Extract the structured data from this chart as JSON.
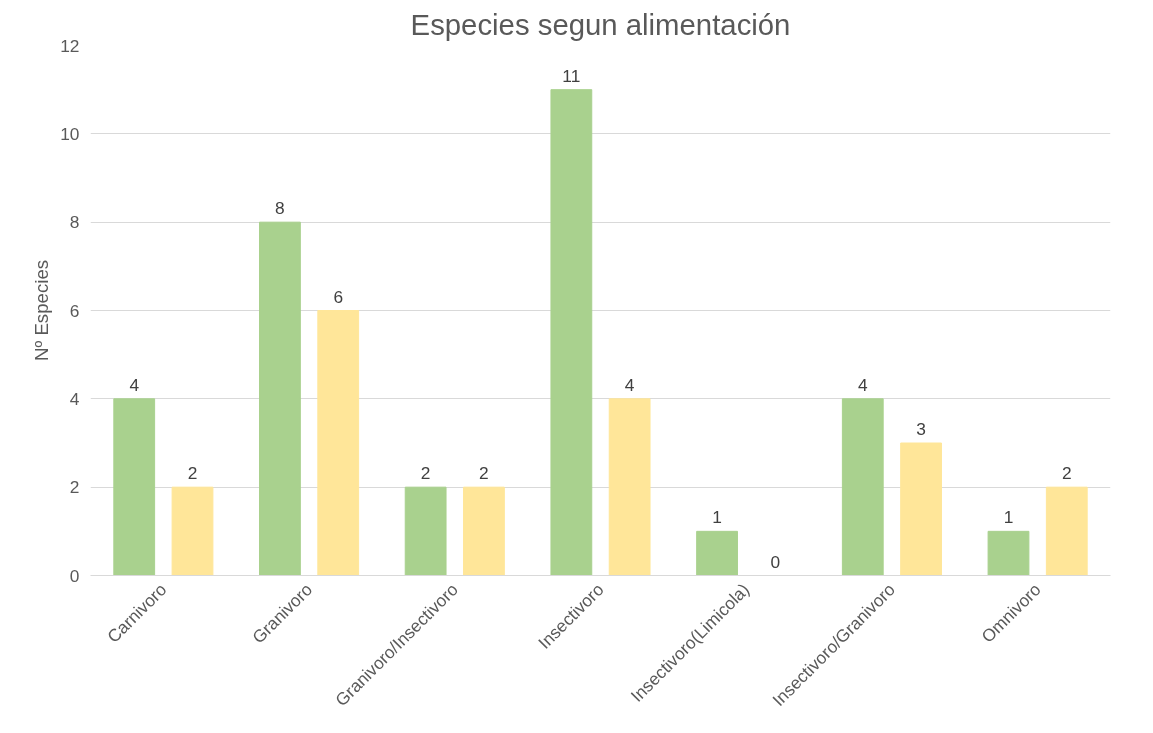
{
  "chart_data": {
    "type": "bar",
    "title": "Especies segun alimentación",
    "ylabel": "Nº Especies",
    "categories": [
      "Carnivoro",
      "Granivoro",
      "Granivoro/Insectivoro",
      "Insectivoro",
      "Insectivoro(Limicola)",
      "Insectivoro/Granivoro",
      "Omnivoro"
    ],
    "series": [
      {
        "color": "#a9d18e",
        "values": [
          4,
          8,
          2,
          11,
          1,
          4,
          1
        ]
      },
      {
        "color": "#ffe699",
        "values": [
          2,
          6,
          2,
          4,
          0,
          3,
          2
        ]
      }
    ],
    "ylim": [
      0,
      12
    ],
    "yticks": [
      0,
      2,
      4,
      6,
      8,
      10,
      12
    ],
    "grid": "y",
    "data_labels": true
  }
}
